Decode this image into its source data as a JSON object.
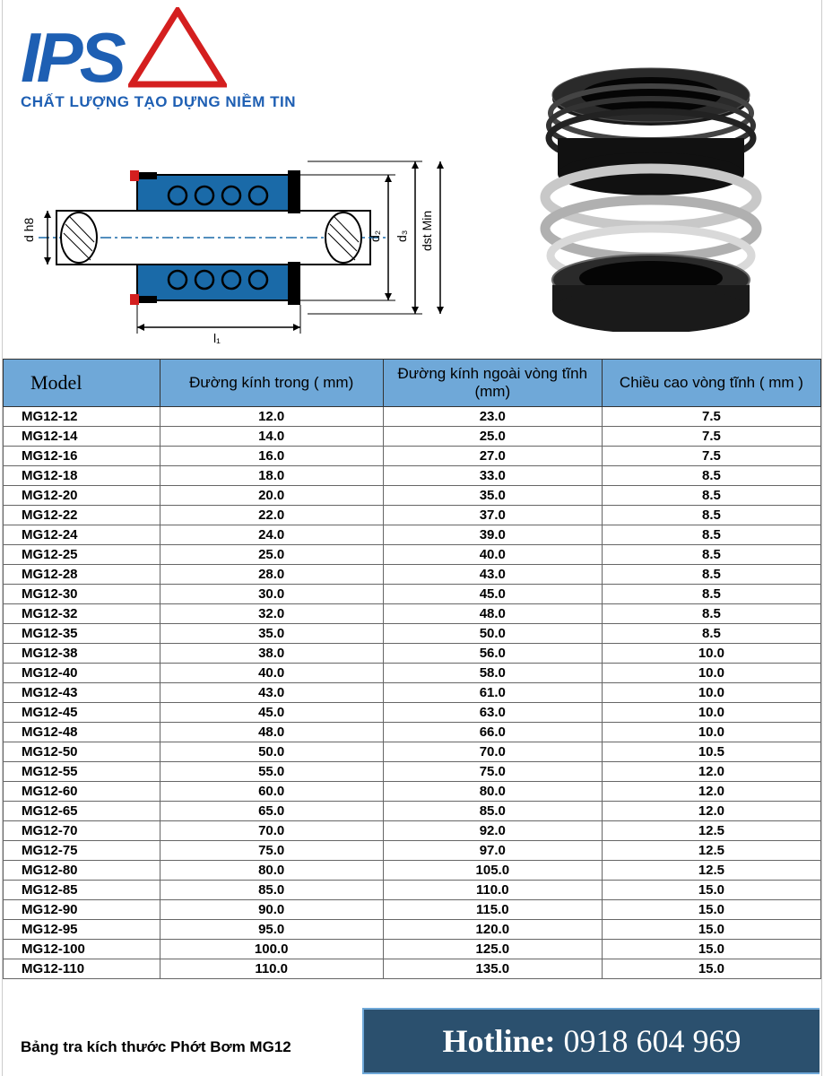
{
  "brand": {
    "name": "IPS",
    "tagline": "CHẤT LƯỢNG TẠO DỰNG NIỀM TIN",
    "logo_primary_color": "#1e5fb3",
    "logo_accent_color": "#d41f1f"
  },
  "diagram": {
    "labels": {
      "d_h8": "d h8",
      "l1": "l₁",
      "d2": "d₂",
      "d3": "d₃",
      "dst_min": "dst Min"
    },
    "body_color": "#1a6aa8",
    "hatch_color": "#888",
    "outline_color": "#000"
  },
  "product_photo": {
    "description": "mechanical-seal",
    "body_color": "#1a1a1a",
    "spring_color": "#b8b8b8",
    "rim_color": "#d9d9d9"
  },
  "table": {
    "header_bg": "#6fa8d8",
    "border_color": "#333",
    "columns": [
      {
        "key": "model",
        "label": "Model"
      },
      {
        "key": "inner_dia",
        "label": "Đường kính trong ( mm)"
      },
      {
        "key": "outer_dia",
        "label": "Đường kính ngoài vòng tĩnh (mm)"
      },
      {
        "key": "ring_h",
        "label": "Chiều cao vòng tĩnh ( mm )"
      }
    ],
    "rows": [
      {
        "model": "MG12-12",
        "inner_dia": "12.0",
        "outer_dia": "23.0",
        "ring_h": "7.5"
      },
      {
        "model": "MG12-14",
        "inner_dia": "14.0",
        "outer_dia": "25.0",
        "ring_h": "7.5"
      },
      {
        "model": "MG12-16",
        "inner_dia": "16.0",
        "outer_dia": "27.0",
        "ring_h": "7.5"
      },
      {
        "model": "MG12-18",
        "inner_dia": "18.0",
        "outer_dia": "33.0",
        "ring_h": "8.5"
      },
      {
        "model": "MG12-20",
        "inner_dia": "20.0",
        "outer_dia": "35.0",
        "ring_h": "8.5"
      },
      {
        "model": "MG12-22",
        "inner_dia": "22.0",
        "outer_dia": "37.0",
        "ring_h": "8.5"
      },
      {
        "model": "MG12-24",
        "inner_dia": "24.0",
        "outer_dia": "39.0",
        "ring_h": "8.5"
      },
      {
        "model": "MG12-25",
        "inner_dia": "25.0",
        "outer_dia": "40.0",
        "ring_h": "8.5"
      },
      {
        "model": "MG12-28",
        "inner_dia": "28.0",
        "outer_dia": "43.0",
        "ring_h": "8.5"
      },
      {
        "model": "MG12-30",
        "inner_dia": "30.0",
        "outer_dia": "45.0",
        "ring_h": "8.5"
      },
      {
        "model": "MG12-32",
        "inner_dia": "32.0",
        "outer_dia": "48.0",
        "ring_h": "8.5"
      },
      {
        "model": "MG12-35",
        "inner_dia": "35.0",
        "outer_dia": "50.0",
        "ring_h": "8.5"
      },
      {
        "model": "MG12-38",
        "inner_dia": "38.0",
        "outer_dia": "56.0",
        "ring_h": "10.0"
      },
      {
        "model": "MG12-40",
        "inner_dia": "40.0",
        "outer_dia": "58.0",
        "ring_h": "10.0"
      },
      {
        "model": "MG12-43",
        "inner_dia": "43.0",
        "outer_dia": "61.0",
        "ring_h": "10.0"
      },
      {
        "model": "MG12-45",
        "inner_dia": "45.0",
        "outer_dia": "63.0",
        "ring_h": "10.0"
      },
      {
        "model": "MG12-48",
        "inner_dia": "48.0",
        "outer_dia": "66.0",
        "ring_h": "10.0"
      },
      {
        "model": "MG12-50",
        "inner_dia": "50.0",
        "outer_dia": "70.0",
        "ring_h": "10.5"
      },
      {
        "model": "MG12-55",
        "inner_dia": "55.0",
        "outer_dia": "75.0",
        "ring_h": "12.0"
      },
      {
        "model": "MG12-60",
        "inner_dia": "60.0",
        "outer_dia": "80.0",
        "ring_h": "12.0"
      },
      {
        "model": "MG12-65",
        "inner_dia": "65.0",
        "outer_dia": "85.0",
        "ring_h": "12.0"
      },
      {
        "model": "MG12-70",
        "inner_dia": "70.0",
        "outer_dia": "92.0",
        "ring_h": "12.5"
      },
      {
        "model": "MG12-75",
        "inner_dia": "75.0",
        "outer_dia": "97.0",
        "ring_h": "12.5"
      },
      {
        "model": "MG12-80",
        "inner_dia": "80.0",
        "outer_dia": "105.0",
        "ring_h": "12.5"
      },
      {
        "model": "MG12-85",
        "inner_dia": "85.0",
        "outer_dia": "110.0",
        "ring_h": "15.0"
      },
      {
        "model": "MG12-90",
        "inner_dia": "90.0",
        "outer_dia": "115.0",
        "ring_h": "15.0"
      },
      {
        "model": "MG12-95",
        "inner_dia": "95.0",
        "outer_dia": "120.0",
        "ring_h": "15.0"
      },
      {
        "model": "MG12-100",
        "inner_dia": "100.0",
        "outer_dia": "125.0",
        "ring_h": "15.0"
      },
      {
        "model": "MG12-110",
        "inner_dia": "110.0",
        "outer_dia": "135.0",
        "ring_h": "15.0"
      }
    ]
  },
  "caption": "Bảng tra kích thước Phớt Bơm MG12",
  "hotline": {
    "label": "Hotline:",
    "number": "0918 604 969",
    "bg_color": "#2b506e",
    "text_color": "#ffffff"
  }
}
